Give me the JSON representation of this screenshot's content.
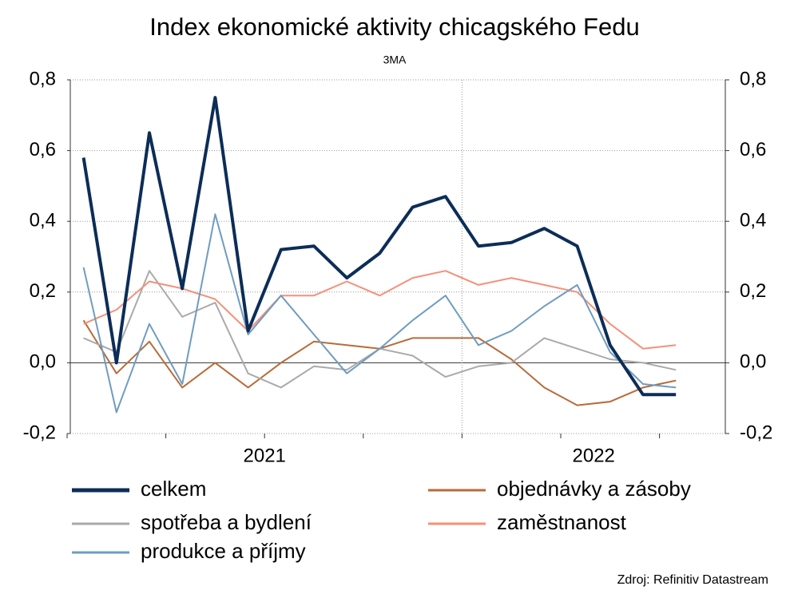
{
  "chart_data": {
    "type": "line",
    "title": "Index ekonomické aktivity chicagského Fedu",
    "subtitle": "3MA",
    "source": "Zdroj: Refinitiv Datastream",
    "categories": [
      null,
      null,
      null,
      null,
      null,
      null,
      null,
      null,
      null,
      null,
      null,
      null,
      null,
      null,
      null,
      null,
      null,
      null,
      null
    ],
    "year_labels": [
      "2021",
      "2022"
    ],
    "series": [
      {
        "name": "celkem",
        "color": "#0c2d57",
        "width": 4,
        "values": [
          0.58,
          0.0,
          0.65,
          0.21,
          0.75,
          0.09,
          0.32,
          0.33,
          0.24,
          0.31,
          0.44,
          0.47,
          0.33,
          0.34,
          0.38,
          0.33,
          0.05,
          -0.09,
          -0.09
        ]
      },
      {
        "name": "spotřeba a bydlení",
        "color": "#aaaaaa",
        "width": 2,
        "values": [
          0.07,
          0.03,
          0.26,
          0.13,
          0.17,
          -0.03,
          -0.07,
          -0.01,
          -0.02,
          0.04,
          0.02,
          -0.04,
          -0.01,
          0.0,
          0.07,
          0.04,
          0.01,
          0.0,
          -0.02
        ]
      },
      {
        "name": "produkce a příjmy",
        "color": "#6f9cc0",
        "width": 2,
        "values": [
          0.27,
          -0.14,
          0.11,
          -0.06,
          0.42,
          0.08,
          0.19,
          0.08,
          -0.03,
          0.04,
          0.12,
          0.19,
          0.05,
          0.09,
          0.16,
          0.22,
          0.03,
          -0.06,
          -0.07
        ]
      },
      {
        "name": "objednávky a zásoby",
        "color": "#b86b3a",
        "width": 2,
        "values": [
          0.12,
          -0.03,
          0.06,
          -0.07,
          0.0,
          -0.07,
          0.0,
          0.06,
          0.05,
          0.04,
          0.07,
          0.07,
          0.07,
          0.01,
          -0.07,
          -0.12,
          -0.11,
          -0.07,
          -0.05
        ]
      },
      {
        "name": "zaměstnanost",
        "color": "#f4907a",
        "width": 2,
        "values": [
          0.11,
          0.15,
          0.23,
          0.21,
          0.18,
          0.09,
          0.19,
          0.19,
          0.23,
          0.19,
          0.24,
          0.26,
          0.22,
          0.24,
          0.22,
          0.2,
          0.11,
          0.04,
          0.05
        ]
      }
    ],
    "ylim": [
      -0.2,
      0.8
    ],
    "yticks": [
      {
        "value": -0.2,
        "label": "-0,2"
      },
      {
        "value": 0,
        "label": "0,0"
      },
      {
        "value": 0.2,
        "label": "0,2"
      },
      {
        "value": 0.4,
        "label": "0,4"
      },
      {
        "value": 0.6,
        "label": "0,6"
      },
      {
        "value": 0.8,
        "label": "0,8"
      }
    ],
    "y2lim": [
      -0.2,
      0.8
    ],
    "y2ticks": [
      {
        "value": -0.2,
        "label": "-0,2"
      },
      {
        "value": 0,
        "label": "0,0"
      },
      {
        "value": 0.2,
        "label": "0,2"
      },
      {
        "value": 0.4,
        "label": "0,4"
      },
      {
        "value": 0.6,
        "label": "0,6"
      },
      {
        "value": 0.8,
        "label": "0,8"
      }
    ],
    "grid": true
  }
}
